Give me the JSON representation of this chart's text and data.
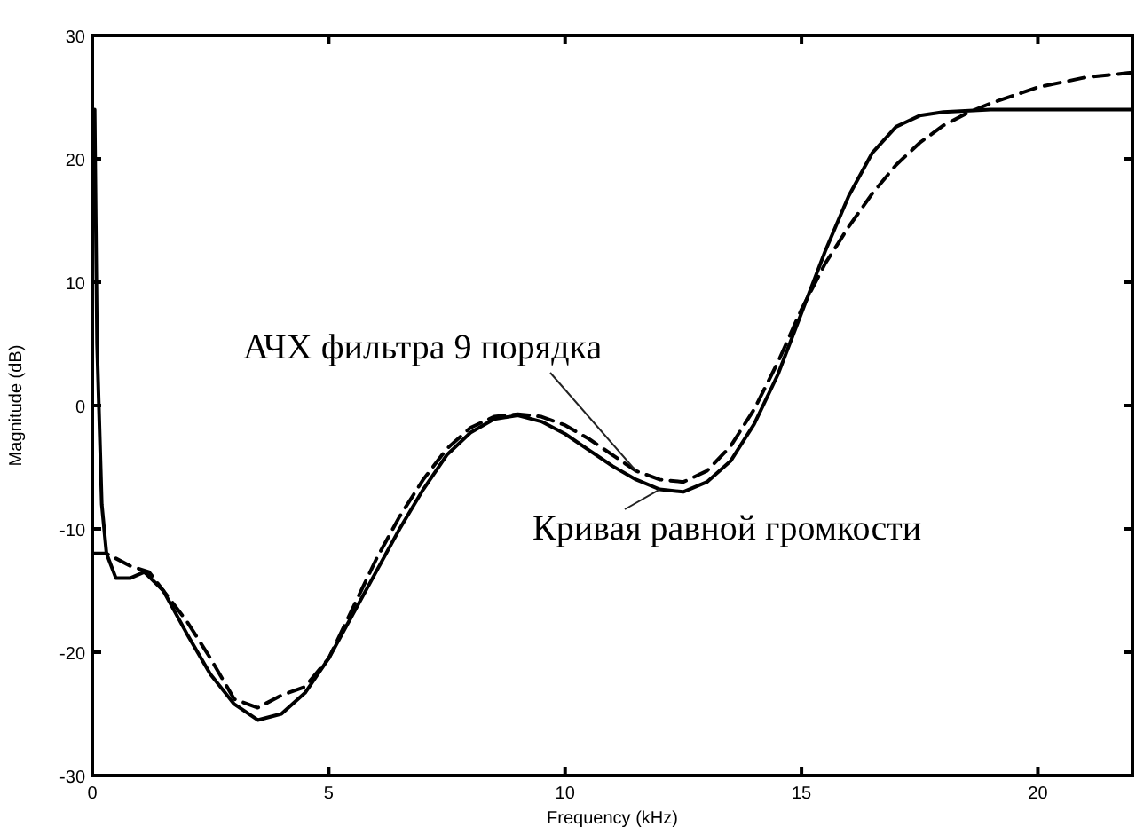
{
  "chart_data": {
    "type": "line",
    "xlabel": "Frequency (kHz)",
    "ylabel": "Magnitude (dB)",
    "xlim": [
      0,
      22
    ],
    "ylim": [
      -30,
      30
    ],
    "xticks": [
      0,
      5,
      10,
      15,
      20
    ],
    "yticks": [
      -30,
      -20,
      -10,
      0,
      10,
      20,
      30
    ],
    "grid": false,
    "marker": "none",
    "series": [
      {
        "name": "Кривая равной громкости",
        "color": "#000000",
        "line_style": "solid",
        "x": [
          0.05,
          0.1,
          0.2,
          0.3,
          0.5,
          0.8,
          1.1,
          1.5,
          2,
          2.5,
          3,
          3.5,
          4,
          4.5,
          5,
          5.5,
          6,
          6.5,
          7,
          7.5,
          8,
          8.5,
          9,
          9.5,
          10,
          10.5,
          11,
          11.5,
          12,
          12.5,
          13,
          13.5,
          14,
          14.5,
          15,
          15.5,
          16,
          16.5,
          17,
          17.5,
          18,
          19,
          20,
          22
        ],
        "values": [
          24,
          5,
          -8,
          -12,
          -14,
          -14,
          -13.5,
          -15,
          -18.5,
          -21.8,
          -24.2,
          -25.5,
          -25,
          -23.3,
          -20.5,
          -17,
          -13.5,
          -10,
          -6.8,
          -4,
          -2.2,
          -1.1,
          -0.8,
          -1.3,
          -2.3,
          -3.6,
          -4.9,
          -6,
          -6.8,
          -7,
          -6.2,
          -4.5,
          -1.5,
          2.5,
          7.5,
          12.5,
          17,
          20.5,
          22.6,
          23.5,
          23.8,
          24,
          24,
          24
        ]
      },
      {
        "name": "АЧХ фильтра 9 порядка",
        "color": "#000000",
        "line_style": "dashed",
        "x": [
          0,
          0.3,
          0.8,
          1.2,
          1.6,
          2,
          2.5,
          3,
          3.5,
          4,
          4.5,
          5,
          5.5,
          6,
          6.5,
          7,
          7.5,
          8,
          8.5,
          9,
          9.5,
          10,
          10.5,
          11,
          11.5,
          12,
          12.5,
          13,
          13.5,
          14,
          14.5,
          15,
          15.5,
          16,
          16.5,
          17,
          17.5,
          18,
          18.5,
          19,
          20,
          21,
          22
        ],
        "values": [
          -12,
          -12,
          -13,
          -13.5,
          -15.5,
          -17.5,
          -20.5,
          -23.8,
          -24.5,
          -23.5,
          -22.8,
          -20.5,
          -16.5,
          -12.5,
          -9,
          -6,
          -3.5,
          -1.8,
          -0.9,
          -0.7,
          -0.9,
          -1.6,
          -2.7,
          -4,
          -5.3,
          -6,
          -6.2,
          -5.3,
          -3.3,
          -0.3,
          3.5,
          7.8,
          11.5,
          14.5,
          17.2,
          19.5,
          21.3,
          22.7,
          23.7,
          24.5,
          25.8,
          26.6,
          27
        ]
      }
    ]
  }
}
